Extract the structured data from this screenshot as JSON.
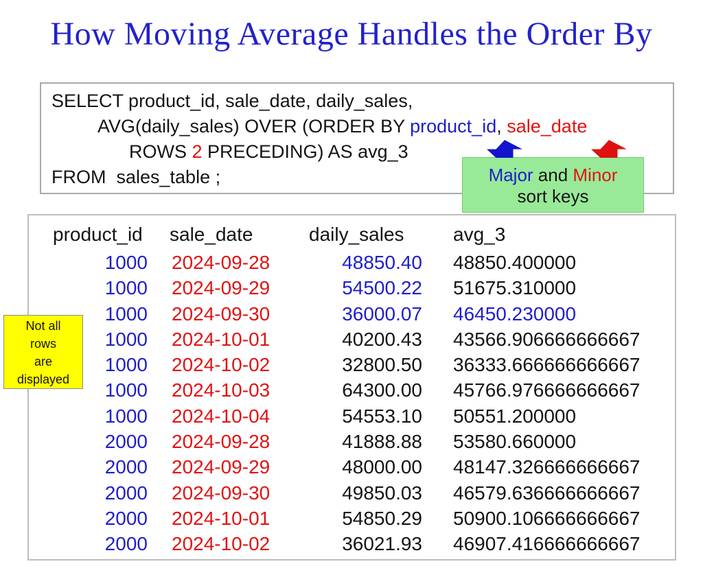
{
  "title": "How Moving Average Handles the Order By",
  "sql": {
    "lines": [
      {
        "indent": 0,
        "segments": [
          {
            "text": "SELECT product_id, sale_date, daily_sales,",
            "color": "black"
          }
        ]
      },
      {
        "indent": 67,
        "segments": [
          {
            "text": "AVG(daily_sales) OVER (ORDER BY ",
            "color": "black"
          },
          {
            "text": "product_id",
            "color": "blue"
          },
          {
            "text": ", ",
            "color": "black"
          },
          {
            "text": "sale_date",
            "color": "red"
          }
        ]
      },
      {
        "indent": 113,
        "segments": [
          {
            "text": "ROWS ",
            "color": "black"
          },
          {
            "text": "2",
            "color": "red"
          },
          {
            "text": " PRECEDING) AS avg_3",
            "color": "black"
          }
        ]
      },
      {
        "indent": 0,
        "segments": [
          {
            "text": "FROM  sales_table ;",
            "color": "black"
          }
        ]
      }
    ]
  },
  "callout": {
    "line1_segments": [
      {
        "text": "Major",
        "color": "blue"
      },
      {
        "text": " and ",
        "color": "black"
      },
      {
        "text": "Minor",
        "color": "red"
      }
    ],
    "line2": "sort keys"
  },
  "icons": {
    "major_arrow": "up-block-arrow",
    "minor_arrow": "up-block-arrow"
  },
  "note": {
    "lines": [
      "Not all",
      "rows",
      "are",
      "displayed"
    ]
  },
  "table": {
    "headers": [
      "product_id",
      "sale_date",
      "daily_sales",
      "avg_3"
    ],
    "rows": [
      [
        "1000",
        "2024-09-28",
        "48850.40",
        "48850.400000"
      ],
      [
        "1000",
        "2024-09-29",
        "54500.22",
        "51675.310000"
      ],
      [
        "1000",
        "2024-09-30",
        "36000.07",
        "46450.230000"
      ],
      [
        "1000",
        "2024-10-01",
        "40200.43",
        "43566.906666666667"
      ],
      [
        "1000",
        "2024-10-02",
        "32800.50",
        "36333.666666666667"
      ],
      [
        "1000",
        "2024-10-03",
        "64300.00",
        "45766.976666666667"
      ],
      [
        "1000",
        "2024-10-04",
        "54553.10",
        "50551.200000"
      ],
      [
        "2000",
        "2024-09-28",
        "41888.88",
        "53580.660000"
      ],
      [
        "2000",
        "2024-09-29",
        "48000.00",
        "48147.326666666667"
      ],
      [
        "2000",
        "2024-09-30",
        "49850.03",
        "46579.636666666667"
      ],
      [
        "2000",
        "2024-10-01",
        "54850.29",
        "50900.106666666667"
      ],
      [
        "2000",
        "2024-10-02",
        "36021.93",
        "46907.416666666667"
      ]
    ],
    "cell_colors": [
      [
        "blue",
        "red",
        "blue",
        "black"
      ],
      [
        "blue",
        "red",
        "blue",
        "black"
      ],
      [
        "blue",
        "red",
        "blue",
        "blue"
      ],
      [
        "blue",
        "red",
        "black",
        "black"
      ],
      [
        "blue",
        "red",
        "black",
        "black"
      ],
      [
        "blue",
        "red",
        "black",
        "black"
      ],
      [
        "blue",
        "red",
        "black",
        "black"
      ],
      [
        "blue",
        "red",
        "black",
        "black"
      ],
      [
        "blue",
        "red",
        "black",
        "black"
      ],
      [
        "blue",
        "red",
        "black",
        "black"
      ],
      [
        "blue",
        "red",
        "black",
        "black"
      ],
      [
        "blue",
        "red",
        "black",
        "black"
      ]
    ]
  },
  "colors": {
    "title_blue": "#2222cb",
    "data_blue": "#1e1ecd",
    "data_red": "#e21313",
    "callout_green": "#98ea98",
    "note_yellow": "#ffff00"
  }
}
